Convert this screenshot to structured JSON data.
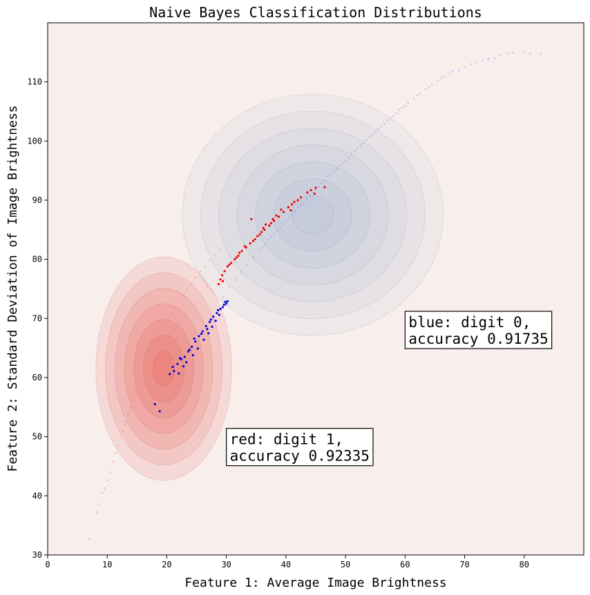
{
  "chart_data": {
    "type": "scatter",
    "title": "Naive Bayes Classification Distributions",
    "xlabel": "Feature 1: Average Image Brightness",
    "ylabel": "Feature 2: Standard Deviation of Image Brightness",
    "xlim": [
      0,
      90
    ],
    "ylim": [
      30,
      120
    ],
    "x_ticks": [
      0,
      10,
      20,
      30,
      40,
      50,
      60,
      70,
      80
    ],
    "y_ticks": [
      30,
      40,
      50,
      60,
      70,
      80,
      90,
      100,
      110
    ],
    "grid": false,
    "background_color": "#f8eeeb",
    "gaussians": [
      {
        "class": "digit 1",
        "color": "#e8392f",
        "mean": [
          19.5,
          61.5
        ],
        "std": [
          3.8,
          6.3
        ],
        "levels": 7
      },
      {
        "class": "digit 0",
        "color": "#7a9cc0",
        "mean": [
          44.5,
          87.5
        ],
        "std": [
          7.3,
          6.8
        ],
        "levels": 7
      }
    ],
    "series": [
      {
        "color": "#ff6666",
        "style": "faint",
        "points": [
          [
            7,
            32.7
          ],
          [
            8.3,
            37.2
          ],
          [
            8.6,
            38.6
          ],
          [
            9.1,
            40.5
          ],
          [
            9.6,
            41.3
          ],
          [
            10.1,
            42.6
          ],
          [
            10.5,
            44
          ],
          [
            11,
            45.8
          ],
          [
            11.4,
            47.2
          ],
          [
            11.8,
            48.5
          ],
          [
            12.2,
            49.8
          ],
          [
            12.7,
            51
          ],
          [
            13.1,
            52.5
          ],
          [
            13.5,
            53.7
          ],
          [
            14,
            55
          ],
          [
            14.4,
            56.2
          ],
          [
            14.9,
            57.3
          ],
          [
            15.3,
            58.6
          ],
          [
            15.8,
            59.7
          ],
          [
            16.2,
            61
          ],
          [
            16.7,
            62
          ],
          [
            17.1,
            63.2
          ],
          [
            17.6,
            64.3
          ],
          [
            18.1,
            65.4
          ],
          [
            18.6,
            66.5
          ],
          [
            19.1,
            67.5
          ],
          [
            19.6,
            68.6
          ],
          [
            20.2,
            69.7
          ],
          [
            20.8,
            70.8
          ],
          [
            21.4,
            71.8
          ],
          [
            22,
            72.9
          ],
          [
            22.7,
            73.9
          ],
          [
            23.4,
            74.9
          ],
          [
            24.1,
            75.9
          ],
          [
            24.8,
            76.9
          ],
          [
            25.6,
            77.9
          ],
          [
            26.4,
            78.8
          ],
          [
            27.2,
            79.8
          ],
          [
            28,
            80.7
          ],
          [
            28.8,
            81.6
          ],
          [
            15.5,
            57.6
          ],
          [
            16.1,
            58.5
          ],
          [
            16.8,
            60.3
          ],
          [
            17.4,
            61.5
          ],
          [
            18,
            62.8
          ],
          [
            18.6,
            63.6
          ],
          [
            19.3,
            64.8
          ],
          [
            20,
            66
          ],
          [
            20.6,
            67
          ],
          [
            21.3,
            68.3
          ],
          [
            22.1,
            69.4
          ],
          [
            14.6,
            56.9
          ],
          [
            13.8,
            54.1
          ],
          [
            12.9,
            51.9
          ],
          [
            17.9,
            60.1
          ],
          [
            19.8,
            63.2
          ],
          [
            21.8,
            66.4
          ],
          [
            23.2,
            70.8
          ],
          [
            25,
            72.7
          ],
          [
            26.8,
            75.5
          ]
        ]
      },
      {
        "color": "#8080ff",
        "style": "faint",
        "points": [
          [
            29.5,
            73.5
          ],
          [
            30.5,
            75.2
          ],
          [
            31.5,
            76.5
          ],
          [
            32.5,
            77.8
          ],
          [
            33.5,
            79
          ],
          [
            34.5,
            80.3
          ],
          [
            35.5,
            81.5
          ],
          [
            36.5,
            82.6
          ],
          [
            37.5,
            83.8
          ],
          [
            38.5,
            84.9
          ],
          [
            39.5,
            86
          ],
          [
            40.5,
            87
          ],
          [
            41.5,
            88.1
          ],
          [
            42.5,
            89.2
          ],
          [
            43.5,
            90.2
          ],
          [
            44.5,
            91.3
          ],
          [
            45.5,
            92.3
          ],
          [
            46.5,
            93.3
          ],
          [
            47.5,
            94.4
          ],
          [
            48.5,
            95.3
          ],
          [
            49.5,
            96.3
          ],
          [
            50.5,
            97.3
          ],
          [
            51.5,
            98.3
          ],
          [
            52.5,
            99.2
          ],
          [
            53.5,
            100.2
          ],
          [
            54.5,
            101.1
          ],
          [
            55.5,
            102
          ],
          [
            56.5,
            102.9
          ],
          [
            57.5,
            103.8
          ],
          [
            58.5,
            104.7
          ],
          [
            59.5,
            105.6
          ],
          [
            60.5,
            106.4
          ],
          [
            61.5,
            107.2
          ],
          [
            62.5,
            108
          ],
          [
            63.5,
            108.8
          ],
          [
            64.5,
            109.5
          ],
          [
            65.5,
            110.2
          ],
          [
            66.5,
            110.9
          ],
          [
            67.5,
            111.4
          ],
          [
            69,
            112
          ],
          [
            71,
            113
          ],
          [
            73,
            113.6
          ],
          [
            75,
            114
          ],
          [
            77.3,
            114.8
          ],
          [
            80,
            115
          ],
          [
            82.8,
            114.8
          ],
          [
            39,
            85.2
          ],
          [
            40,
            86.5
          ],
          [
            41,
            87.5
          ],
          [
            42,
            88.8
          ],
          [
            43,
            89.6
          ],
          [
            44,
            90.7
          ],
          [
            45,
            91.8
          ],
          [
            46,
            92.8
          ],
          [
            47,
            94.1
          ],
          [
            48,
            94.9
          ],
          [
            36,
            82
          ],
          [
            37,
            83.3
          ],
          [
            38,
            84.3
          ],
          [
            49,
            95.9
          ],
          [
            50,
            96.6
          ],
          [
            51,
            97.9
          ],
          [
            52,
            98.7
          ],
          [
            53,
            99.6
          ],
          [
            54,
            100.8
          ],
          [
            55,
            101.5
          ],
          [
            56,
            102.5
          ],
          [
            57,
            103.5
          ],
          [
            58,
            104.2
          ],
          [
            59,
            105.3
          ],
          [
            60,
            105.9
          ],
          [
            62,
            107.7
          ],
          [
            64,
            109.2
          ],
          [
            66,
            110.6
          ],
          [
            68,
            111.8
          ],
          [
            70,
            112.5
          ],
          [
            72,
            113.3
          ],
          [
            74,
            113.9
          ],
          [
            76,
            114.5
          ],
          [
            78,
            114.9
          ],
          [
            81,
            114.8
          ]
        ]
      },
      {
        "color": "#ee0000",
        "style": "solid",
        "points": [
          [
            28.7,
            75.8
          ],
          [
            29,
            76.6
          ],
          [
            29.3,
            77.3
          ],
          [
            29.7,
            78
          ],
          [
            30.2,
            78.8
          ],
          [
            30.8,
            79.4
          ],
          [
            31.4,
            80
          ],
          [
            32,
            80.6
          ],
          [
            32.6,
            81.4
          ],
          [
            33.3,
            82
          ],
          [
            34,
            82.7
          ],
          [
            34.8,
            83.4
          ],
          [
            35.6,
            84.2
          ],
          [
            36.4,
            85
          ],
          [
            37.2,
            85.7
          ],
          [
            38,
            86.5
          ],
          [
            38.8,
            87.2
          ],
          [
            39.6,
            88
          ],
          [
            40.4,
            88.8
          ],
          [
            41.4,
            89.7
          ],
          [
            42.5,
            90.5
          ],
          [
            43.6,
            91.3
          ],
          [
            45,
            92.1
          ],
          [
            46.5,
            92.2
          ],
          [
            34.2,
            86.8
          ],
          [
            36.6,
            85.9
          ],
          [
            37.8,
            86.8
          ],
          [
            39.2,
            88.4
          ],
          [
            30.5,
            79.1
          ],
          [
            31.7,
            80.3
          ],
          [
            33.1,
            82.2
          ],
          [
            34.5,
            83.1
          ],
          [
            35.9,
            84.6
          ],
          [
            37.5,
            86.1
          ],
          [
            41,
            89.3
          ],
          [
            42,
            90
          ],
          [
            44.2,
            91.7
          ],
          [
            29.4,
            76.3
          ],
          [
            32.2,
            81.1
          ],
          [
            35.2,
            83.9
          ],
          [
            36.2,
            85.3
          ],
          [
            38.4,
            87.4
          ],
          [
            40.8,
            88.3
          ],
          [
            44.8,
            91.1
          ]
        ]
      },
      {
        "color": "#0000dd",
        "style": "solid",
        "points": [
          [
            18,
            55.5
          ],
          [
            18.8,
            54.3
          ],
          [
            20.5,
            60.6
          ],
          [
            21.2,
            61.1
          ],
          [
            21.8,
            62.3
          ],
          [
            22.4,
            63.1
          ],
          [
            23,
            63.5
          ],
          [
            23.6,
            64.4
          ],
          [
            24.2,
            65.2
          ],
          [
            24.8,
            66.1
          ],
          [
            25.4,
            67
          ],
          [
            26,
            67.8
          ],
          [
            26.6,
            68.7
          ],
          [
            27.2,
            69.4
          ],
          [
            27.8,
            70.3
          ],
          [
            28.4,
            70.9
          ],
          [
            29,
            71.6
          ],
          [
            29.6,
            72.3
          ],
          [
            30.2,
            72.9
          ],
          [
            22,
            60.7
          ],
          [
            22.8,
            61.9
          ],
          [
            23.3,
            62.6
          ],
          [
            24.4,
            63.8
          ],
          [
            25.2,
            64.9
          ],
          [
            26.2,
            66.4
          ],
          [
            27,
            67.5
          ],
          [
            27.6,
            68.6
          ],
          [
            28.2,
            69.6
          ],
          [
            28.8,
            70.6
          ],
          [
            29.4,
            71.9
          ],
          [
            30,
            72.5
          ],
          [
            21,
            61.8
          ],
          [
            22.2,
            63.3
          ],
          [
            23.8,
            64.7
          ],
          [
            24.6,
            66.6
          ],
          [
            25.8,
            67.4
          ],
          [
            26.8,
            68.2
          ],
          [
            27.4,
            69.8
          ],
          [
            28.6,
            71.4
          ],
          [
            29.8,
            72.8
          ]
        ]
      }
    ],
    "annotations": [
      {
        "id": "blue",
        "lines": [
          "blue: digit 0,",
          "accuracy 0.91735"
        ],
        "x": 60,
        "y": 64.9
      },
      {
        "id": "red",
        "lines": [
          "red: digit 1,",
          "accuracy 0.92335"
        ],
        "x": 30,
        "y": 45.1
      }
    ]
  }
}
